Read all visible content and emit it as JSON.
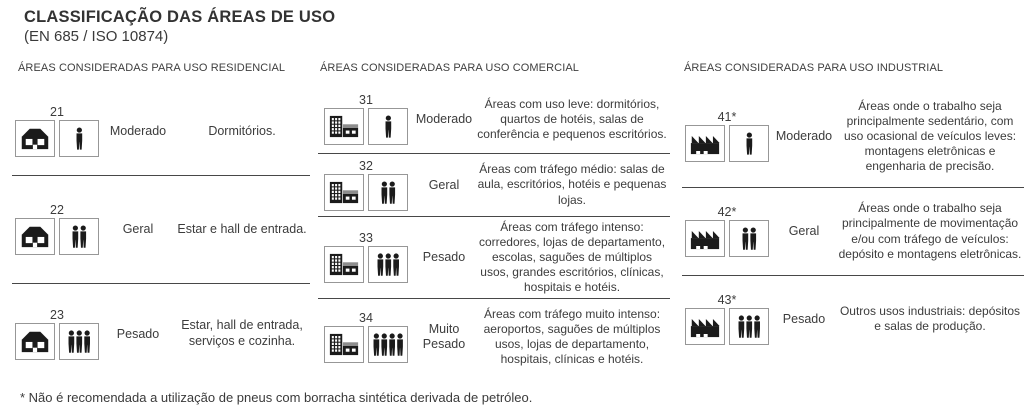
{
  "title": "CLASSIFICAÇÃO DAS ÁREAS DE USO",
  "subtitle": "(EN 685 / ISO 10874)",
  "footnote": "* Não é recomendada a utilização de pneus com borracha sintética derivada de petróleo.",
  "colors": {
    "text": "#3c3c3c",
    "icon": "#1b1b1b",
    "separator_line": "#474747",
    "icon_box_border": "#979797",
    "background": "#ffffff"
  },
  "columns": [
    {
      "id": "residential",
      "header": "ÁREAS CONSIDERADAS PARA USO RESIDENCIAL",
      "rows": [
        {
          "code": "21",
          "place_icon": "house-icon",
          "traffic_icon": "persons-1-icon",
          "label": "Moderado",
          "description": "Dormitórios."
        },
        {
          "code": "22",
          "place_icon": "house-icon",
          "traffic_icon": "persons-2-icon",
          "label": "Geral",
          "description": "Estar e hall de entrada."
        },
        {
          "code": "23",
          "place_icon": "house-icon",
          "traffic_icon": "persons-3-icon",
          "label": "Pesado",
          "description": "Estar, hall de entrada, serviços e cozinha."
        }
      ]
    },
    {
      "id": "commercial",
      "header": "ÁREAS CONSIDERADAS PARA USO COMERCIAL",
      "rows": [
        {
          "code": "31",
          "place_icon": "building-icon",
          "traffic_icon": "persons-1-icon",
          "label": "Moderado",
          "description": "Áreas com uso leve: dormitórios, quartos de hotéis, salas de conferência e pequenos escritórios."
        },
        {
          "code": "32",
          "place_icon": "building-icon",
          "traffic_icon": "persons-2-icon",
          "label": "Geral",
          "description": "Áreas com tráfego médio: salas de aula, escritórios, hotéis e pequenas lojas."
        },
        {
          "code": "33",
          "place_icon": "building-icon",
          "traffic_icon": "persons-3-icon",
          "label": "Pesado",
          "description": "Áreas com tráfego intenso: corredores, lojas de departamento, escolas, saguões de múltiplos usos, grandes escritórios, clínicas, hospitais e hotéis."
        },
        {
          "code": "34",
          "place_icon": "building-icon",
          "traffic_icon": "persons-4-icon",
          "label": "Muito Pesado",
          "description": "Áreas com tráfego muito intenso: aeroportos, saguões de múltiplos usos, lojas de departamento, hospitais, clínicas e hotéis."
        }
      ]
    },
    {
      "id": "industrial",
      "header": "ÁREAS CONSIDERADAS PARA USO INDUSTRIAL",
      "rows": [
        {
          "code": "41*",
          "place_icon": "factory-icon",
          "traffic_icon": "persons-1-icon",
          "label": "Moderado",
          "description": "Áreas onde o trabalho seja principalmente sedentário, com uso ocasional de veículos leves: montagens eletrônicas e engenharia de precisão."
        },
        {
          "code": "42*",
          "place_icon": "factory-icon",
          "traffic_icon": "persons-2-icon",
          "label": "Geral",
          "description": "Áreas onde o trabalho seja principalmente de movimentação e/ou com tráfego de veículos: depósito e montagens eletrônicas."
        },
        {
          "code": "43*",
          "place_icon": "factory-icon",
          "traffic_icon": "persons-3-icon",
          "label": "Pesado",
          "description": "Outros usos industriais: depósitos e salas de produção."
        }
      ]
    }
  ]
}
